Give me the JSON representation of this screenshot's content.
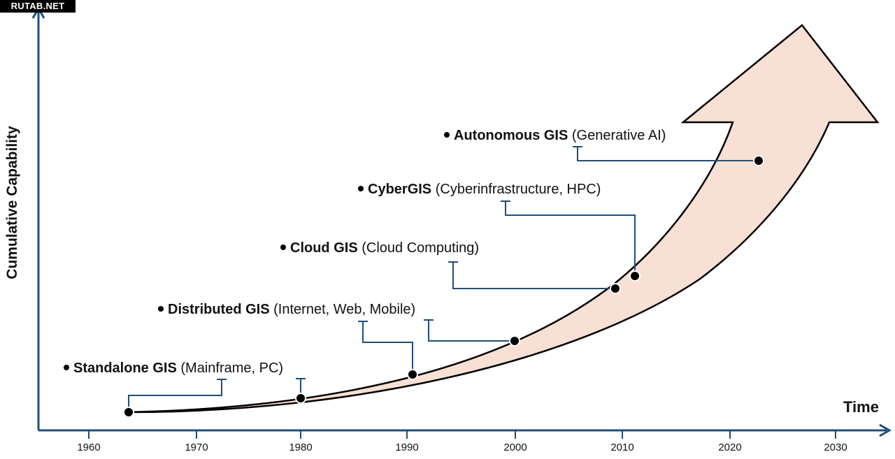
{
  "watermark": "RUTAB.NET",
  "axes": {
    "y_label": "Cumulative Capability",
    "x_label": "Time",
    "x_ticks": [
      "1960",
      "1970",
      "1980",
      "1990",
      "2000",
      "2010",
      "2020",
      "2030"
    ]
  },
  "stages": [
    {
      "name": "Standalone GIS",
      "detail": "(Mainframe, PC)"
    },
    {
      "name": "Distributed GIS",
      "detail": "(Internet, Web, Mobile)"
    },
    {
      "name": "Cloud GIS",
      "detail": "(Cloud Computing)"
    },
    {
      "name": "CyberGIS",
      "detail": "(Cyberinfrastructure, HPC)"
    },
    {
      "name": "Autonomous GIS",
      "detail": "(Generative AI)"
    }
  ],
  "colors": {
    "axis": "#1f4e79",
    "arrow_fill": "#f9e0d4",
    "leader": "#1f4e79"
  }
}
